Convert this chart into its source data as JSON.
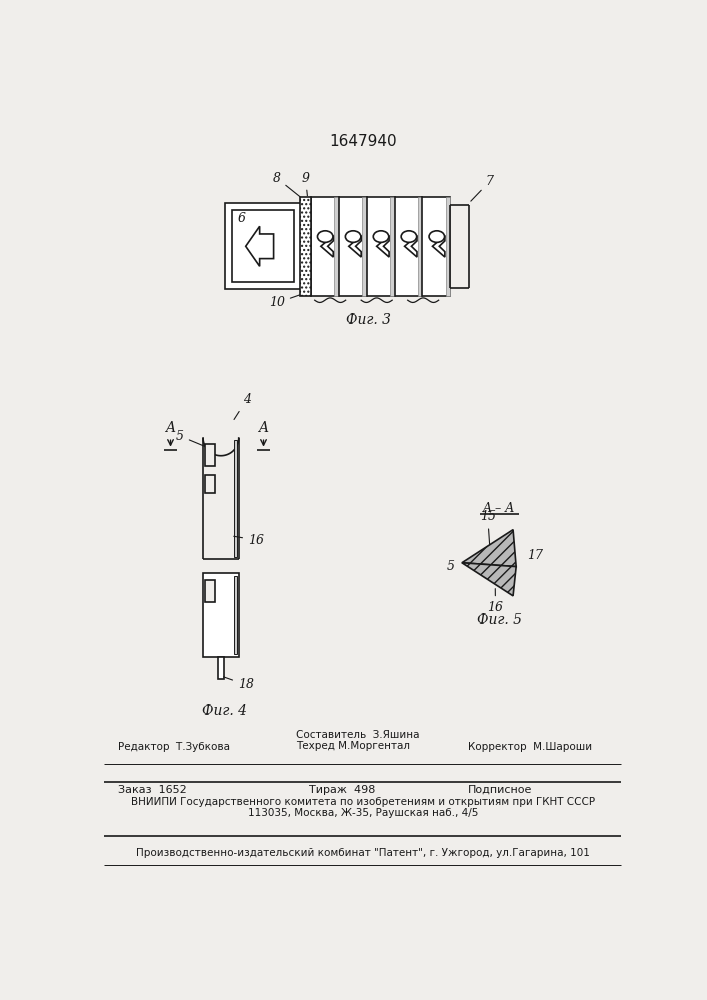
{
  "bg_color": "#f0eeeb",
  "title": "1647940",
  "fig3_caption": "Фиг. 3",
  "fig4_caption": "Фиг. 4",
  "fig5_caption": "Фиг. 5",
  "footer_line1_left": "Редактор  Т.Зубкова",
  "footer_line1_mid": "Составитель  З.Яшина\nТехред М.Моргентал",
  "footer_line1_right": "Корректор  М.Шароши",
  "footer_line2_col1": "Заказ  1652",
  "footer_line2_col2": "Тираж  498",
  "footer_line2_col3": "Подписное",
  "footer_line3": "ВНИИПИ Государственного комитета по изобретениям и открытиям при ГКНТ СССР",
  "footer_line4": "113035, Москва, Ж-35, Раушская наб., 4/5",
  "footer_line5": "Производственно-издательский комбинат \"Патент\", г. Ужгород, ул.Гагарина, 101",
  "line_color": "#1a1a1a"
}
